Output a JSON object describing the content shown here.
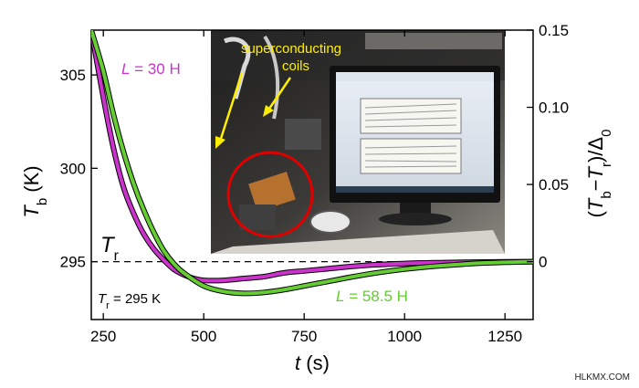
{
  "chart_data": {
    "type": "line",
    "xlabel": "t (s)",
    "ylabel_left": "T_b (K)",
    "ylabel_right": "(T_b−T_r)/Δ_0",
    "x_ticks": [
      250,
      500,
      750,
      1000,
      1250
    ],
    "y_left_ticks": [
      295,
      300,
      305
    ],
    "y_right_ticks": [
      "0",
      "0.05",
      "0.10",
      "0.15"
    ],
    "xlim": [
      220,
      1320
    ],
    "ylim_left": [
      291.9,
      307.4
    ],
    "ylim_right_at": {
      "0": 295,
      "0.15": 307.4
    },
    "reference": {
      "value": 295,
      "label": "T_r",
      "style": "dashed"
    },
    "note": "T_r = 295 K",
    "series": [
      {
        "name": "L = 30 H",
        "color": "#cc33cc",
        "x": [
          220,
          250,
          275,
          300,
          325,
          350,
          375,
          400,
          425,
          450,
          475,
          500,
          550,
          600,
          650,
          700,
          750,
          800,
          900,
          1000,
          1100,
          1200,
          1320
        ],
        "y": [
          307.4,
          303.8,
          301.1,
          299.0,
          297.6,
          296.5,
          295.7,
          295.1,
          294.6,
          294.3,
          294.1,
          294.0,
          294.0,
          294.1,
          294.2,
          294.4,
          294.5,
          294.6,
          294.8,
          294.9,
          294.95,
          294.98,
          295.0
        ]
      },
      {
        "name": "L = 58.5 H",
        "color": "#66cc33",
        "x": [
          220,
          250,
          275,
          300,
          325,
          350,
          375,
          400,
          425,
          450,
          500,
          550,
          600,
          650,
          700,
          750,
          800,
          900,
          1000,
          1100,
          1200,
          1320
        ],
        "y": [
          307.4,
          305.2,
          302.9,
          300.9,
          299.2,
          297.8,
          296.6,
          295.6,
          294.9,
          294.4,
          293.7,
          293.4,
          293.3,
          293.35,
          293.5,
          293.7,
          293.9,
          294.3,
          294.6,
          294.8,
          294.93,
          295.0
        ]
      }
    ],
    "series_labels": [
      {
        "series": 0,
        "prefix": "L",
        "text": " = 30 H"
      },
      {
        "series": 1,
        "prefix": "L",
        "text": " = 58.5 H"
      }
    ],
    "inset_photo": {
      "annotation": "superconducting coils",
      "annotation_lines": [
        "superconducting",
        "coils"
      ],
      "annotation_color": "#ffee00",
      "highlight_color": "#e00000"
    }
  },
  "watermark": "HLKMX.COM"
}
